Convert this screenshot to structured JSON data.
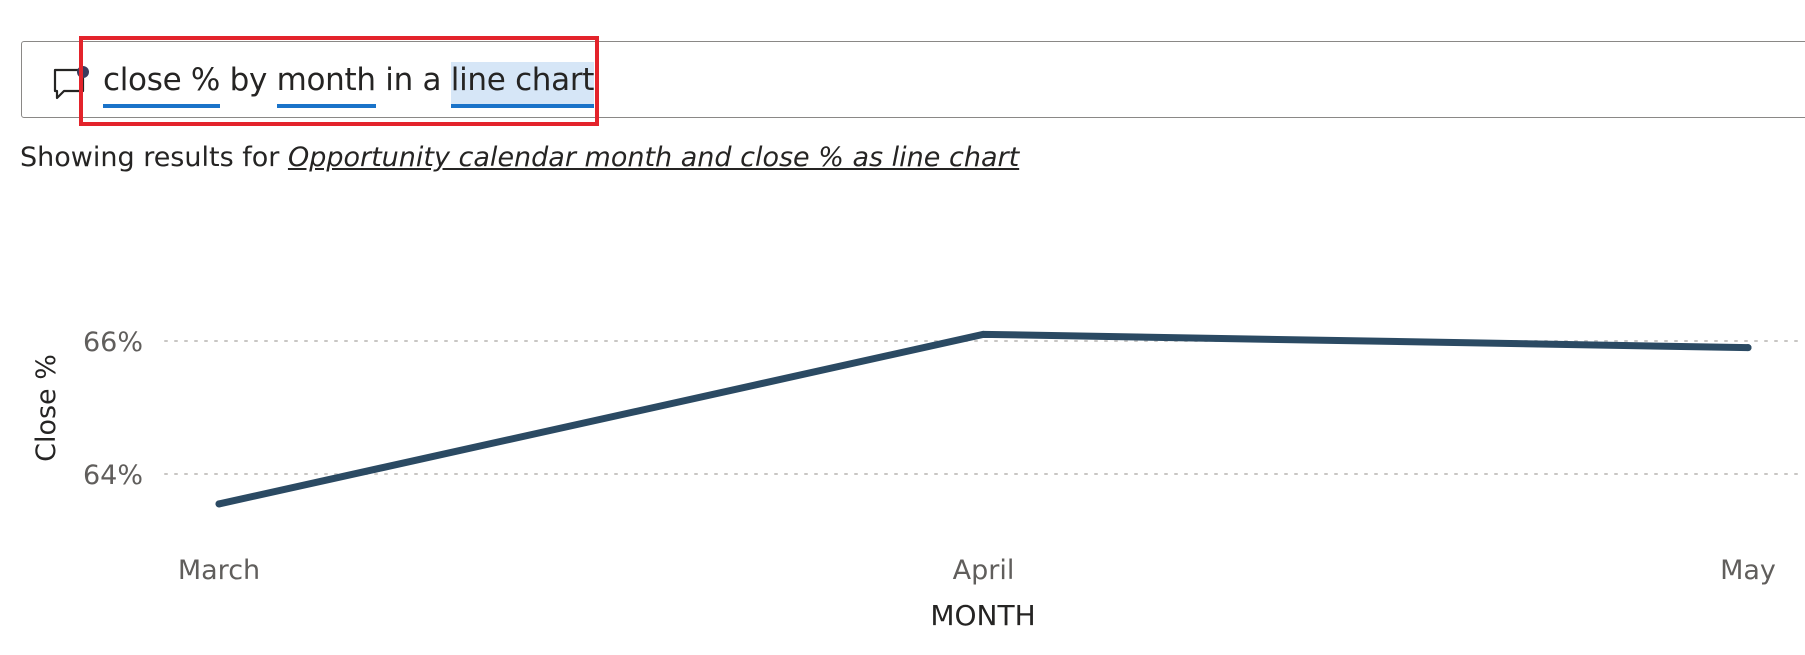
{
  "qa": {
    "query_terms": [
      {
        "text": "close %",
        "kind": "term"
      },
      {
        "text": " by ",
        "kind": "plain"
      },
      {
        "text": "month",
        "kind": "term"
      },
      {
        "text": " in a ",
        "kind": "plain"
      },
      {
        "text": "line chart",
        "kind": "viz"
      }
    ],
    "restatement_prefix": "Showing results for ",
    "restatement_link": "Opportunity calendar month and close % as line chart",
    "icon": "speech-bubble-icon"
  },
  "colors": {
    "line": "#2b4a63",
    "grid": "#c8c6c4",
    "term_underline": "#1a73c9",
    "highlight_border": "#e3232b",
    "axis_text": "#605e5c"
  },
  "chart_data": {
    "type": "line",
    "categories": [
      "March",
      "April",
      "May"
    ],
    "series": [
      {
        "values": [
          63.55,
          66.1,
          65.9
        ]
      }
    ],
    "xlabel": "MONTH",
    "ylabel": "Close %",
    "yticks": [
      "64%",
      "66%"
    ],
    "ytick_values": [
      64,
      66
    ],
    "ylim": [
      63.0,
      67.5
    ],
    "grid": true,
    "legend": "none"
  }
}
